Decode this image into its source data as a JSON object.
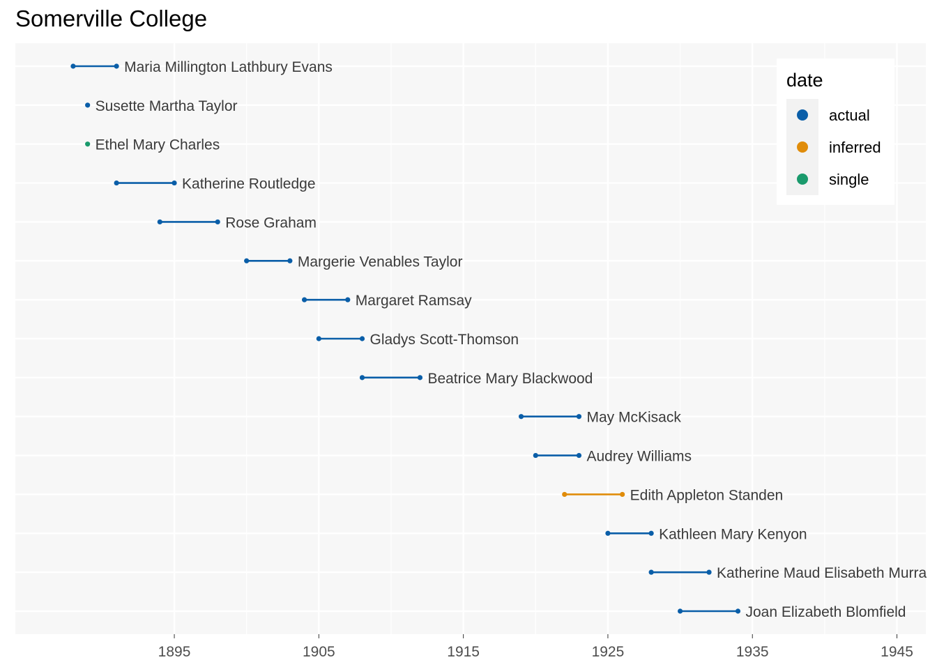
{
  "title": "Somerville College",
  "chart_data": {
    "type": "dumbbell",
    "title": "Somerville College",
    "xlabel": "",
    "ylabel": "",
    "xlim": [
      1884,
      1947
    ],
    "x_ticks": [
      1895,
      1905,
      1915,
      1925,
      1935,
      1945
    ],
    "grid": true,
    "legend": {
      "title": "date",
      "placement": "top-right",
      "entries": [
        {
          "label": "actual",
          "color": "#0a5ea8"
        },
        {
          "label": "inferred",
          "color": "#e08c0a"
        },
        {
          "label": "single",
          "color": "#1a9a6c"
        }
      ]
    },
    "rows": [
      {
        "name": "Maria Millington Lathbury Evans",
        "start": 1888,
        "end": 1891,
        "date": "actual"
      },
      {
        "name": "Susette Martha Taylor",
        "start": 1889,
        "end": 1889,
        "date": "actual"
      },
      {
        "name": "Ethel Mary Charles",
        "start": 1889,
        "end": 1889,
        "date": "single"
      },
      {
        "name": "Katherine Routledge",
        "start": 1891,
        "end": 1895,
        "date": "actual"
      },
      {
        "name": "Rose Graham",
        "start": 1894,
        "end": 1898,
        "date": "actual"
      },
      {
        "name": "Margerie Venables Taylor",
        "start": 1900,
        "end": 1903,
        "date": "actual"
      },
      {
        "name": "Margaret Ramsay",
        "start": 1904,
        "end": 1907,
        "date": "actual"
      },
      {
        "name": "Gladys Scott-Thomson",
        "start": 1905,
        "end": 1908,
        "date": "actual"
      },
      {
        "name": "Beatrice Mary Blackwood",
        "start": 1908,
        "end": 1912,
        "date": "actual"
      },
      {
        "name": "May McKisack",
        "start": 1919,
        "end": 1923,
        "date": "actual"
      },
      {
        "name": "Audrey Williams",
        "start": 1920,
        "end": 1923,
        "date": "actual"
      },
      {
        "name": "Edith Appleton Standen",
        "start": 1922,
        "end": 1926,
        "date": "inferred"
      },
      {
        "name": "Kathleen Mary Kenyon",
        "start": 1925,
        "end": 1928,
        "date": "actual"
      },
      {
        "name": "Katherine Maud Elisabeth Murray",
        "start": 1928,
        "end": 1932,
        "date": "actual"
      },
      {
        "name": "Joan Elizabeth Blomfield",
        "start": 1930,
        "end": 1934,
        "date": "actual"
      }
    ]
  }
}
